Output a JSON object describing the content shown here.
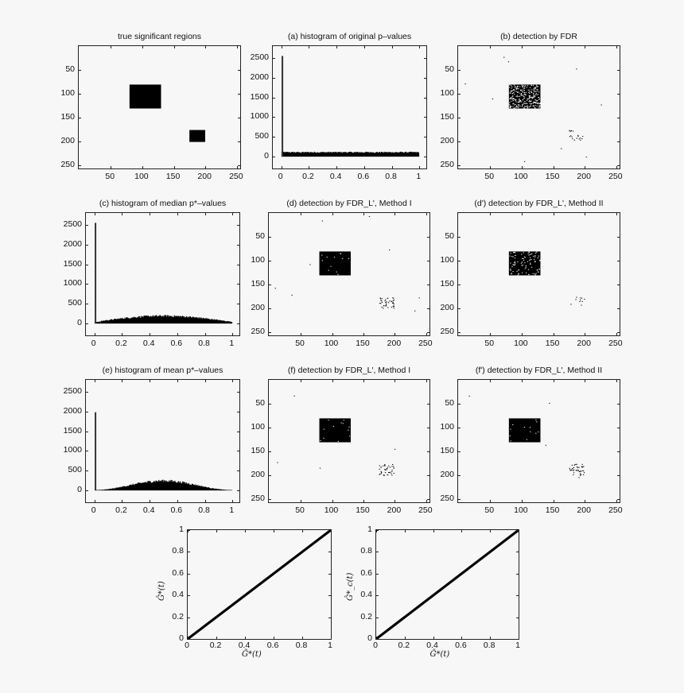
{
  "figure": {
    "background": "#f7f7f7",
    "ink": "#000000"
  },
  "panels": {
    "true_regions": {
      "title": "true significant regions"
    },
    "a": {
      "title": "(a)  histogram of original p–values"
    },
    "b": {
      "title": "(b)  detection by FDR"
    },
    "c": {
      "title": "(c)  histogram of median p*–values"
    },
    "d": {
      "title": "(d)  detection by FDR_L', Method I"
    },
    "d2": {
      "title": "(d') detection by FDR_L', Method II"
    },
    "e": {
      "title": "(e)  histogram of mean p*–values"
    },
    "f": {
      "title": "(f)  detection by FDR_L', Method I"
    },
    "f2": {
      "title": "(f') detection by FDR_L', Method II"
    },
    "g1": {
      "ylabel": "Ĝ*(t)",
      "xlabel": "G̃*(t)"
    },
    "g2": {
      "ylabel": "Ĝ*_c(t)",
      "xlabel": "G̃*(t)"
    }
  },
  "ticks": {
    "image_x": [
      "50",
      "100",
      "150",
      "200",
      "250"
    ],
    "image_y": [
      "50",
      "100",
      "150",
      "200",
      "250"
    ],
    "hist_x": [
      "0",
      "0.2",
      "0.4",
      "0.6",
      "0.8",
      "1"
    ],
    "hist_y": [
      "0",
      "500",
      "1000",
      "1500",
      "2000",
      "2500"
    ],
    "qq": [
      "0",
      "0.2",
      "0.4",
      "0.6",
      "0.8",
      "1"
    ]
  },
  "chart_data": [
    {
      "type": "heatmap",
      "title": "true significant regions",
      "xlim": [
        1,
        256
      ],
      "ylim": [
        256,
        1
      ],
      "regions": [
        {
          "x": [
            81,
            130
          ],
          "y": [
            81,
            130
          ],
          "value": 1
        },
        {
          "x": [
            176,
            200
          ],
          "y": [
            176,
            200
          ],
          "value": 1
        }
      ]
    },
    {
      "type": "bar",
      "title": "(a) histogram of original p-values",
      "xlabel": "",
      "ylabel": "",
      "xlim": [
        0,
        1
      ],
      "ylim": [
        -300,
        2800
      ],
      "x_ticks": [
        0,
        0.2,
        0.4,
        0.6,
        0.8,
        1
      ],
      "y_ticks": [
        0,
        500,
        1000,
        1500,
        2000,
        2500
      ],
      "spike_at_0": 2550,
      "bulk_level": 110,
      "shape": "uniform"
    },
    {
      "type": "heatmap",
      "title": "(b) detection by FDR",
      "xlim": [
        1,
        256
      ],
      "ylim": [
        256,
        1
      ],
      "description": "large region x,y 81-130 detected with many holes; small region ~176-200 sparsely detected; scattered false positives"
    },
    {
      "type": "bar",
      "title": "(c) histogram of median p*-values",
      "xlim": [
        0,
        1
      ],
      "ylim": [
        -300,
        2800
      ],
      "x_ticks": [
        0,
        0.2,
        0.4,
        0.6,
        0.8,
        1
      ],
      "y_ticks": [
        0,
        500,
        1000,
        1500,
        2000,
        2500
      ],
      "spike_at_0": 2550,
      "bulk_profile": {
        "x": [
          0.01,
          0.1,
          0.2,
          0.3,
          0.4,
          0.5,
          0.6,
          0.7,
          0.8,
          0.9,
          1.0
        ],
        "y": [
          40,
          70,
          110,
          140,
          160,
          170,
          165,
          150,
          120,
          70,
          10
        ]
      }
    },
    {
      "type": "heatmap",
      "title": "(d) detection by FDR_L', Method I",
      "xlim": [
        1,
        256
      ],
      "ylim": [
        256,
        1
      ],
      "description": "large region nearly solid; small region partially detected; few false positives"
    },
    {
      "type": "heatmap",
      "title": "(d') detection by FDR_L', Method II",
      "xlim": [
        1,
        256
      ],
      "ylim": [
        256,
        1
      ],
      "description": "large region mostly detected with holes; small region sparse"
    },
    {
      "type": "bar",
      "title": "(e) histogram of mean p*-values",
      "xlim": [
        0,
        1
      ],
      "ylim": [
        -300,
        2800
      ],
      "x_ticks": [
        0,
        0.2,
        0.4,
        0.6,
        0.8,
        1
      ],
      "y_ticks": [
        0,
        500,
        1000,
        1500,
        2000,
        2500
      ],
      "spike_at_0": 1980,
      "bulk_profile": {
        "x": [
          0.01,
          0.1,
          0.2,
          0.3,
          0.4,
          0.5,
          0.6,
          0.7,
          0.8,
          0.9,
          1.0
        ],
        "y": [
          30,
          40,
          80,
          150,
          210,
          240,
          220,
          160,
          90,
          40,
          5
        ]
      }
    },
    {
      "type": "heatmap",
      "title": "(f) detection by FDR_L', Method I",
      "xlim": [
        1,
        256
      ],
      "ylim": [
        256,
        1
      ],
      "description": "large region nearly solid; small region partially detected"
    },
    {
      "type": "heatmap",
      "title": "(f') detection by FDR_L', Method II",
      "xlim": [
        1,
        256
      ],
      "ylim": [
        256,
        1
      ],
      "description": "large region nearly solid; small region partially detected"
    },
    {
      "type": "line",
      "title": "",
      "xlabel": "G~*(t)",
      "ylabel": "G^*(t)",
      "xlim": [
        0,
        1
      ],
      "ylim": [
        0,
        1
      ],
      "x": [
        0,
        0.2,
        0.4,
        0.6,
        0.8,
        1
      ],
      "y": [
        0,
        0.2,
        0.4,
        0.6,
        0.8,
        1
      ]
    },
    {
      "type": "line",
      "title": "",
      "xlabel": "G~*(t)",
      "ylabel": "G^*_c(t)",
      "xlim": [
        0,
        1
      ],
      "ylim": [
        0,
        1
      ],
      "x": [
        0,
        0.2,
        0.4,
        0.6,
        0.8,
        1
      ],
      "y": [
        0,
        0.2,
        0.4,
        0.6,
        0.8,
        1
      ]
    }
  ]
}
